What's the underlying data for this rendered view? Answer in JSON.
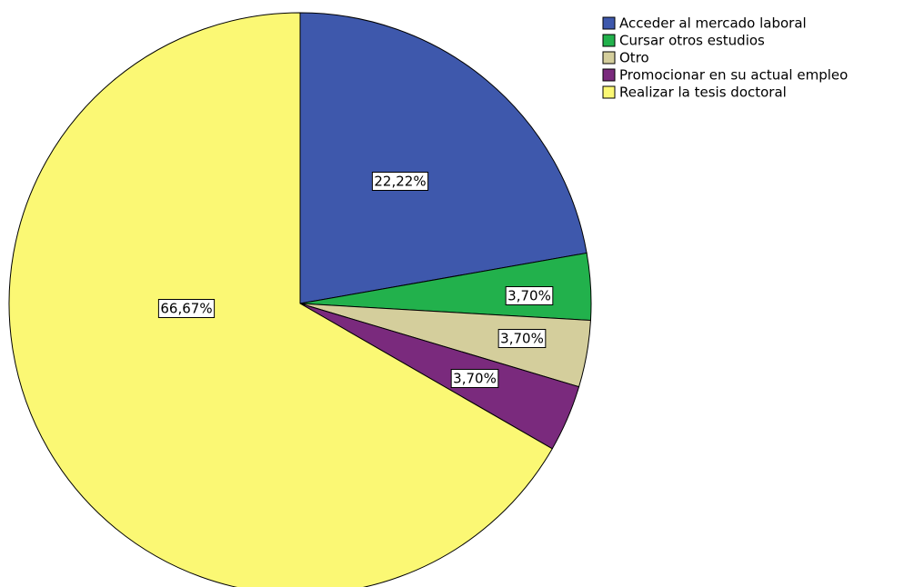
{
  "chart_data": {
    "type": "pie",
    "categories": [
      "Acceder al mercado laboral",
      "Cursar otros estudios",
      "Otro",
      "Promocionar en su actual empleo",
      "Realizar la tesis doctoral"
    ],
    "values": [
      22.22,
      3.7,
      3.7,
      3.7,
      66.67
    ],
    "value_labels": [
      "22,22%",
      "3,70%",
      "3,70%",
      "3,70%",
      "66,67%"
    ],
    "colors": [
      "#3e58ac",
      "#22b14c",
      "#d4ce9c",
      "#7a2a7d",
      "#fbf874"
    ],
    "legend": "top-right"
  }
}
